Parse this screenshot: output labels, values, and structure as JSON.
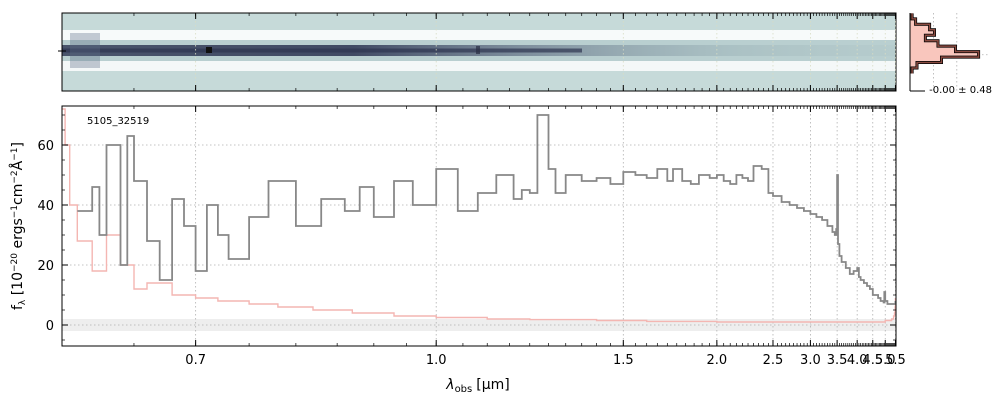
{
  "chart_data": {
    "type": "line",
    "annotation": "5105_32519",
    "xlabel": "λ",
    "xlabel_sub": "obs",
    "xlabel_unit": "[μm]",
    "ylabel_parts": [
      "f",
      "λ",
      " [10",
      "−20",
      " ergs",
      "−1",
      "cm",
      "−2",
      "Å",
      "−1",
      "]"
    ],
    "xlim": [
      0.6,
      5.53
    ],
    "ylim": [
      -7,
      73
    ],
    "x_scale": "reciprocal",
    "grid": true,
    "x_ticks": [
      {
        "v": 0.7,
        "label": "0.7"
      },
      {
        "v": 1.0,
        "label": "1.0"
      },
      {
        "v": 1.5,
        "label": "1.5"
      },
      {
        "v": 2.0,
        "label": "2.0"
      },
      {
        "v": 2.5,
        "label": "2.5"
      },
      {
        "v": 3.0,
        "label": "3.0"
      },
      {
        "v": 3.5,
        "label": "3.5"
      },
      {
        "v": 4.0,
        "label": "4.0"
      },
      {
        "v": 4.5,
        "label": "4.5"
      },
      {
        "v": 5.0,
        "label": "5.0"
      },
      {
        "v": 5.5,
        "label": "5.5"
      }
    ],
    "y_ticks": [
      {
        "v": 0,
        "label": "0"
      },
      {
        "v": 20,
        "label": "20"
      },
      {
        "v": 40,
        "label": "40"
      },
      {
        "v": 60,
        "label": "60"
      }
    ],
    "colors": {
      "flux": "#888888",
      "error": "#f4b6b2",
      "band": "#eeeeee",
      "grid": "#b0b0b0"
    },
    "series": [
      {
        "role": "flux",
        "x": [
          0.61,
          0.62,
          0.625,
          0.63,
          0.64,
          0.645,
          0.65,
          0.66,
          0.67,
          0.68,
          0.69,
          0.7,
          0.71,
          0.72,
          0.73,
          0.75,
          0.77,
          0.8,
          0.83,
          0.86,
          0.88,
          0.9,
          0.93,
          0.96,
          1.0,
          1.04,
          1.08,
          1.12,
          1.16,
          1.18,
          1.2,
          1.22,
          1.25,
          1.27,
          1.3,
          1.35,
          1.4,
          1.45,
          1.5,
          1.55,
          1.6,
          1.65,
          1.7,
          1.73,
          1.78,
          1.83,
          1.88,
          1.95,
          2.0,
          2.05,
          2.1,
          2.15,
          2.2,
          2.25,
          2.3,
          2.38,
          2.45,
          2.5,
          2.6,
          2.7,
          2.8,
          2.9,
          3.0,
          3.1,
          3.2,
          3.3,
          3.4,
          3.45,
          3.48,
          3.5,
          3.52,
          3.55,
          3.6,
          3.7,
          3.8,
          3.9,
          4.0,
          4.05,
          4.1,
          4.2,
          4.3,
          4.4,
          4.5,
          4.6,
          4.7,
          4.8,
          4.9,
          4.93,
          4.96,
          5.0,
          5.1,
          5.2,
          5.3,
          5.4,
          5.45,
          5.5
        ],
        "y": [
          38,
          46,
          30,
          60,
          20,
          63,
          48,
          28,
          15,
          42,
          33,
          18,
          40,
          30,
          22,
          36,
          48,
          33,
          42,
          38,
          46,
          36,
          48,
          40,
          52,
          38,
          44,
          50,
          42,
          45,
          44,
          70,
          52,
          44,
          50,
          48,
          49,
          47,
          51,
          50,
          49,
          52,
          48,
          52,
          48,
          47,
          50,
          49,
          50,
          48,
          47,
          50,
          49,
          48,
          53,
          52,
          44,
          43,
          41,
          40,
          39,
          38,
          37,
          36,
          35,
          33,
          31,
          30,
          32,
          50,
          27,
          23,
          21,
          19,
          17,
          18,
          19,
          16,
          15,
          14,
          13,
          12,
          10,
          10,
          9,
          8,
          8,
          7.5,
          11,
          8,
          7,
          7,
          7,
          7,
          7,
          8
        ],
        "name": ""
      },
      {
        "role": "error",
        "x": [
          0.6,
          0.602,
          0.605,
          0.61,
          0.62,
          0.63,
          0.64,
          0.65,
          0.66,
          0.68,
          0.7,
          0.72,
          0.75,
          0.78,
          0.82,
          0.87,
          0.93,
          1.0,
          1.1,
          1.2,
          1.4,
          1.6,
          2.0,
          2.5,
          3.0,
          3.5,
          4.0,
          4.5,
          5.0,
          5.3,
          5.4,
          5.45,
          5.48,
          5.5
        ],
        "y": [
          72,
          60,
          40,
          28,
          18,
          30,
          20,
          12,
          14,
          10,
          9,
          8,
          7,
          6,
          5,
          4,
          3,
          2.5,
          2,
          1.8,
          1.5,
          1.2,
          1,
          1,
          1,
          1,
          1,
          1,
          1.5,
          2,
          3,
          4,
          6,
          9
        ],
        "name": ""
      }
    ],
    "band": {
      "y_low": -2,
      "y_high": 2
    },
    "profile_panel": {
      "label": "-0.00 ± 0.48",
      "bins": [
        {
          "pos": -4.6,
          "w": 0.03
        },
        {
          "pos": -3.9,
          "w": 0.08
        },
        {
          "pos": -3.2,
          "w": 0.28
        },
        {
          "pos": -2.5,
          "w": 0.35
        },
        {
          "pos": -1.8,
          "w": 0.22
        },
        {
          "pos": -1.1,
          "w": 0.4
        },
        {
          "pos": -0.4,
          "w": 0.65
        },
        {
          "pos": 0.3,
          "w": 0.98
        },
        {
          "pos": 1.0,
          "w": 0.45
        },
        {
          "pos": 1.7,
          "w": 0.1
        },
        {
          "pos": 2.4,
          "w": 0.03
        }
      ],
      "range": [
        -5,
        5
      ]
    }
  }
}
